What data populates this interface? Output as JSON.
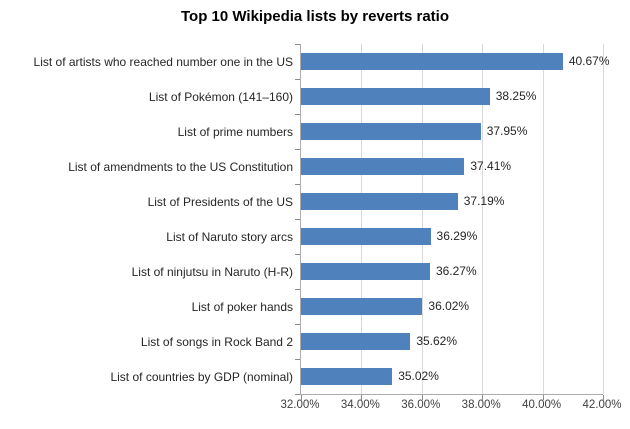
{
  "chart_data": {
    "type": "bar",
    "orientation": "horizontal",
    "title": "Top 10 Wikipedia lists by reverts ratio",
    "categories": [
      "List of artists who reached number one in the US",
      "List of Pokémon (141–160)",
      "List of prime numbers",
      "List of amendments to the US Constitution",
      "List of Presidents of the US",
      "List of Naruto story arcs",
      "List of ninjutsu in Naruto (H-R)",
      "List of poker hands",
      "List of songs in Rock Band 2",
      "List of countries by GDP (nominal)"
    ],
    "values": [
      40.67,
      38.25,
      37.95,
      37.41,
      37.19,
      36.29,
      36.27,
      36.02,
      35.62,
      35.02
    ],
    "value_labels": [
      "40.67%",
      "38.25%",
      "37.95%",
      "37.41%",
      "37.19%",
      "36.29%",
      "36.27%",
      "36.02%",
      "35.62%",
      "35.02%"
    ],
    "xlabel": "",
    "ylabel": "",
    "xlim": [
      32,
      42
    ],
    "x_ticks": [
      32,
      34,
      36,
      38,
      40,
      42
    ],
    "x_tick_labels": [
      "32.00%",
      "34.00%",
      "36.00%",
      "38.00%",
      "40.00%",
      "42.00%"
    ],
    "grid": true,
    "legend": "none",
    "colors": {
      "bar": "#4F81BD",
      "axis": "#ababab",
      "tick": "#8c8c8c",
      "gridline": "#d9d9d9",
      "label": "#262626",
      "tick-label": "#404040",
      "title": "#000000"
    }
  }
}
